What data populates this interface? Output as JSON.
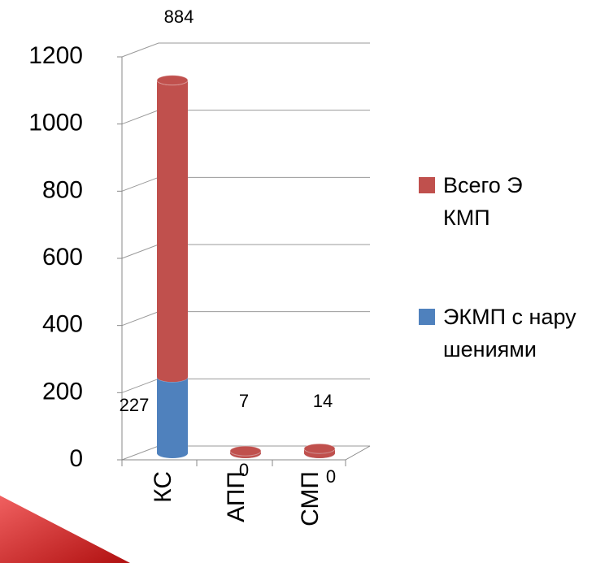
{
  "chart_data": {
    "type": "bar3d_stacked",
    "categories": [
      "КС",
      "АПП",
      "СМП"
    ],
    "series": [
      {
        "name": "ЭКМП с нарушениями",
        "color": "#4f81bd",
        "values": [
          227,
          0,
          0
        ]
      },
      {
        "name": "Всего ЭКМП",
        "color": "#c0504d",
        "values": [
          884,
          7,
          14
        ]
      }
    ],
    "ylim": [
      0,
      1200
    ],
    "yticks": [
      0,
      200,
      400,
      600,
      800,
      1000,
      1200
    ],
    "grid": true,
    "legend": "right"
  }
}
